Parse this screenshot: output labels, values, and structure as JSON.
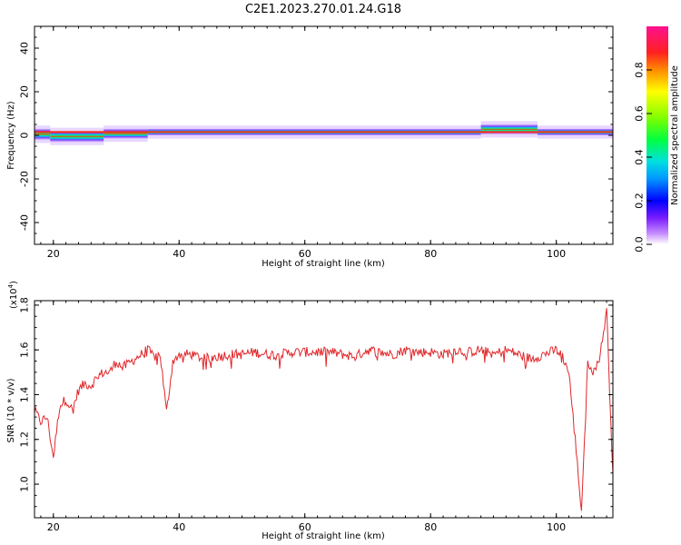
{
  "chart_data": [
    {
      "type": "heatmap",
      "title": "C2E1.2023.270.01.24.G18",
      "xlabel": "Height of straight line (km)",
      "ylabel": "Frequency (Hz)",
      "xlim": [
        17,
        109
      ],
      "ylim": [
        -50,
        50
      ],
      "xticks": [
        "20",
        "40",
        "60",
        "80",
        "100"
      ],
      "yticks": [
        "40",
        "20",
        "0",
        "-20",
        "-40"
      ],
      "colorbar": {
        "label": "Normalized spectral amplitude",
        "range": [
          0,
          1
        ],
        "ticks": [
          "0.0",
          "0.2",
          "0.4",
          "0.6",
          "0.8"
        ]
      },
      "band": {
        "center_hz": 1.5,
        "segments": [
          {
            "x0": 17,
            "x1": 19.5,
            "low": -2,
            "high": 3
          },
          {
            "x0": 19.5,
            "x1": 28,
            "low": -3,
            "high": 2
          },
          {
            "x0": 28,
            "x1": 35,
            "low": -1.5,
            "high": 3
          },
          {
            "x0": 35,
            "x1": 88,
            "low": 0,
            "high": 3
          },
          {
            "x0": 88,
            "x1": 97,
            "low": 0.5,
            "high": 5
          },
          {
            "x0": 97,
            "x1": 109,
            "low": 0,
            "high": 3
          }
        ]
      }
    },
    {
      "type": "line",
      "xlabel": "Height of straight line (km)",
      "ylabel": "SNR (10 * v/v)",
      "scale_label": "(x10",
      "scale_exp": "4",
      "xlim": [
        17,
        109
      ],
      "ylim": [
        0.85,
        1.82
      ],
      "xticks": [
        "20",
        "40",
        "60",
        "80",
        "100"
      ],
      "yticks": [
        "1.0",
        "1.2",
        "1.4",
        "1.6",
        "1.8"
      ],
      "line_color": "#e0272b",
      "series": [
        {
          "x": [
            17,
            18,
            19,
            20,
            21,
            22,
            23,
            24,
            25,
            26,
            27,
            28,
            29,
            30,
            31,
            32,
            33,
            34,
            35,
            36,
            37,
            38,
            39,
            40,
            42,
            44,
            46,
            48,
            50,
            52,
            54,
            56,
            58,
            60,
            62,
            64,
            66,
            68,
            70,
            72,
            74,
            76,
            78,
            80,
            82,
            84,
            86,
            88,
            90,
            92,
            94,
            96,
            98,
            100,
            101,
            102,
            103,
            104,
            105,
            106,
            107,
            108,
            109
          ],
          "y": [
            1.33,
            1.28,
            1.3,
            1.12,
            1.35,
            1.38,
            1.33,
            1.42,
            1.45,
            1.44,
            1.48,
            1.5,
            1.5,
            1.55,
            1.52,
            1.54,
            1.56,
            1.58,
            1.6,
            1.57,
            1.58,
            1.32,
            1.55,
            1.58,
            1.58,
            1.56,
            1.57,
            1.58,
            1.58,
            1.59,
            1.58,
            1.58,
            1.59,
            1.59,
            1.59,
            1.59,
            1.58,
            1.57,
            1.6,
            1.59,
            1.58,
            1.6,
            1.59,
            1.59,
            1.58,
            1.6,
            1.59,
            1.6,
            1.58,
            1.6,
            1.58,
            1.56,
            1.58,
            1.6,
            1.57,
            1.5,
            1.2,
            0.88,
            1.55,
            1.5,
            1.58,
            1.78,
            1.05
          ]
        }
      ]
    }
  ]
}
